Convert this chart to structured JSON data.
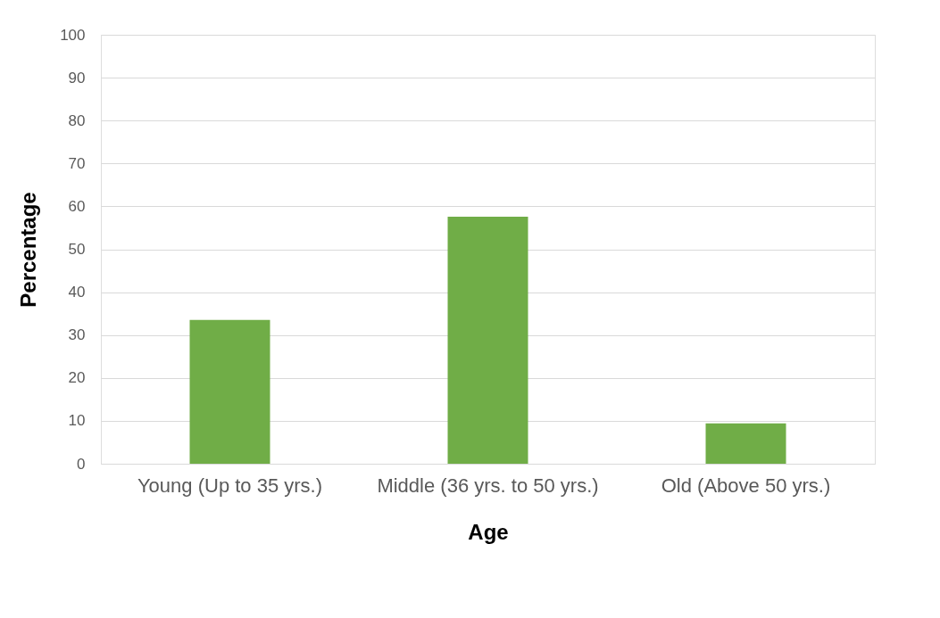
{
  "chart_data": {
    "type": "bar",
    "xlabel": "Age",
    "ylabel": "Percentage",
    "categories": [
      "Young (Up to 35 yrs.)",
      "Middle (36 yrs. to 50 yrs.)",
      "Old (Above 50 yrs.)"
    ],
    "values": [
      33.5,
      57.6,
      9.4
    ],
    "color": "#70ad47",
    "ylim": [
      0,
      100
    ],
    "yticks": [
      0,
      10,
      20,
      30,
      40,
      50,
      60,
      70,
      80,
      90,
      100
    ],
    "grid": "y"
  }
}
